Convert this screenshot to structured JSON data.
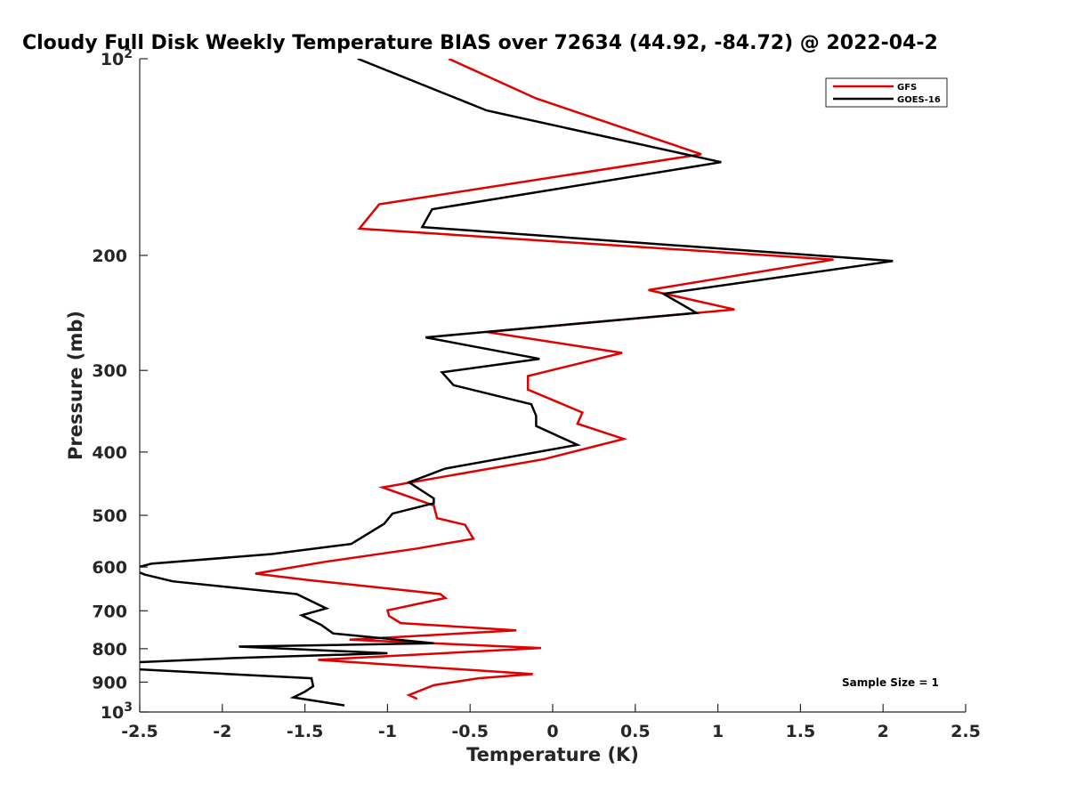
{
  "chart_data": {
    "type": "line",
    "title": "Cloudy Full Disk Weekly Temperature BIAS over 72634 (44.92, -84.72) @ 2022-04-2",
    "xlabel": "Temperature (K)",
    "ylabel": "Pressure (mb)",
    "xlim": [
      -2.5,
      2.5
    ],
    "ylim": [
      100,
      1000
    ],
    "y_scale": "log",
    "y_reversed": true,
    "x_ticks": [
      "-2.5",
      "-2",
      "-1.5",
      "-1",
      "-0.5",
      "0",
      "0.5",
      "1",
      "1.5",
      "2",
      "2.5"
    ],
    "y_ticks": [
      {
        "value": 100,
        "base": "10",
        "exp": "2"
      },
      {
        "value": 200,
        "label": "200"
      },
      {
        "value": 300,
        "label": "300"
      },
      {
        "value": 400,
        "label": "400"
      },
      {
        "value": 500,
        "label": "500"
      },
      {
        "value": 600,
        "label": "600"
      },
      {
        "value": 700,
        "label": "700"
      },
      {
        "value": 800,
        "label": "800"
      },
      {
        "value": 900,
        "label": "900"
      },
      {
        "value": 1000,
        "base": "10",
        "exp": "3"
      }
    ],
    "legend_position": "top-right",
    "annotation": "Sample Size = 1",
    "series": [
      {
        "name": "GFS",
        "color": "#e00000",
        "points": [
          [
            -0.63,
            100
          ],
          [
            -0.1,
            115
          ],
          [
            0.9,
            140
          ],
          [
            -1.05,
            167
          ],
          [
            -1.17,
            182
          ],
          [
            1.7,
            203
          ],
          [
            0.58,
            226
          ],
          [
            1.1,
            242
          ],
          [
            -0.4,
            262
          ],
          [
            0.42,
            282
          ],
          [
            -0.15,
            306
          ],
          [
            -0.15,
            321
          ],
          [
            0.18,
            348
          ],
          [
            0.15,
            362
          ],
          [
            0.43,
            382
          ],
          [
            -0.05,
            410
          ],
          [
            -1.03,
            453
          ],
          [
            -0.72,
            483
          ],
          [
            -0.7,
            505
          ],
          [
            -0.53,
            517
          ],
          [
            -0.48,
            543
          ],
          [
            -0.82,
            562
          ],
          [
            -1.38,
            589
          ],
          [
            -1.8,
            614
          ],
          [
            -1.48,
            628
          ],
          [
            -0.68,
            660
          ],
          [
            -0.65,
            669
          ],
          [
            -1.0,
            699
          ],
          [
            -0.99,
            713
          ],
          [
            -0.92,
            731
          ],
          [
            -0.22,
            750
          ],
          [
            -1.23,
            775
          ],
          [
            -0.07,
            798
          ],
          [
            -1.42,
            832
          ],
          [
            -0.12,
            875
          ],
          [
            -0.45,
            888
          ],
          [
            -0.72,
            910
          ],
          [
            -0.87,
            942
          ],
          [
            -0.82,
            955
          ]
        ]
      },
      {
        "name": "GOES-16",
        "color": "#000000",
        "points": [
          [
            -1.18,
            100
          ],
          [
            -0.4,
            120
          ],
          [
            1.02,
            144
          ],
          [
            -0.73,
            170
          ],
          [
            -0.79,
            181
          ],
          [
            2.06,
            204
          ],
          [
            0.67,
            229
          ],
          [
            0.87,
            245
          ],
          [
            -0.77,
            267
          ],
          [
            -0.08,
            288
          ],
          [
            -0.67,
            302
          ],
          [
            -0.6,
            316
          ],
          [
            -0.13,
            338
          ],
          [
            -0.1,
            352
          ],
          [
            -0.1,
            365
          ],
          [
            0.15,
            390
          ],
          [
            -0.65,
            424
          ],
          [
            -0.87,
            445
          ],
          [
            -0.72,
            471
          ],
          [
            -0.72,
            479
          ],
          [
            -0.97,
            497
          ],
          [
            -1.02,
            515
          ],
          [
            -1.22,
            553
          ],
          [
            -1.7,
            573
          ],
          [
            -2.43,
            593
          ],
          [
            -2.55,
            604
          ],
          [
            -2.47,
            616
          ],
          [
            -2.3,
            631
          ],
          [
            -1.55,
            660
          ],
          [
            -1.37,
            694
          ],
          [
            -1.52,
            711
          ],
          [
            -1.4,
            736
          ],
          [
            -1.33,
            758
          ],
          [
            -0.72,
            785
          ],
          [
            -1.9,
            794
          ],
          [
            -1.0,
            813
          ],
          [
            -1.93,
            827
          ],
          [
            -2.5,
            839
          ],
          [
            -2.6,
            848
          ],
          [
            -2.55,
            859
          ],
          [
            -2.22,
            868
          ],
          [
            -1.46,
            888
          ],
          [
            -1.45,
            913
          ],
          [
            -1.5,
            931
          ],
          [
            -1.57,
            950
          ],
          [
            -1.26,
            977
          ]
        ]
      }
    ]
  }
}
